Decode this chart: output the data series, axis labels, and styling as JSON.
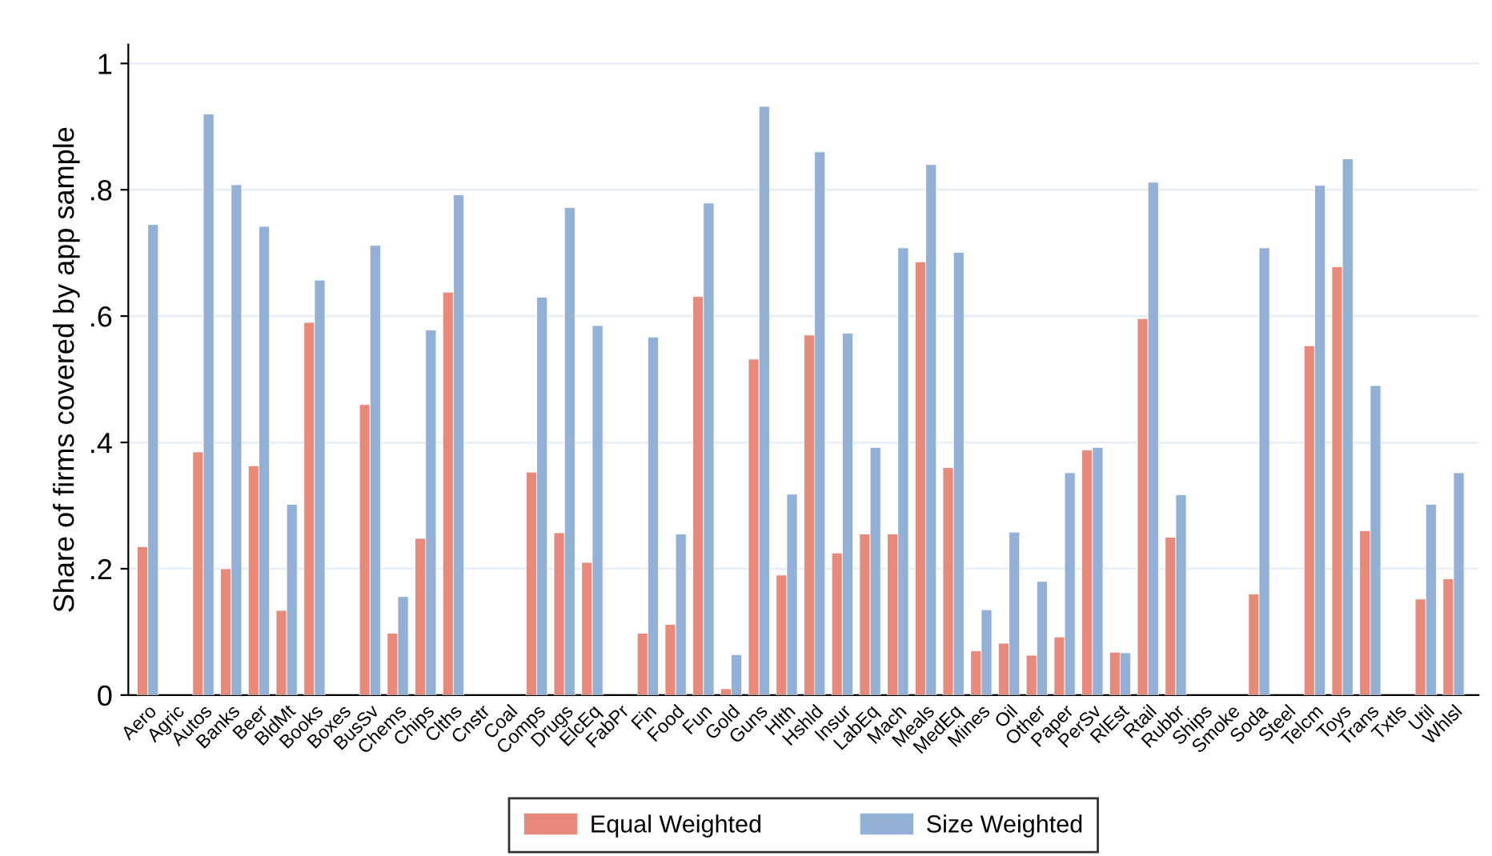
{
  "chart_data": {
    "type": "bar",
    "ylabel": "Share of firms covered by app sample",
    "categories": [
      "Aero",
      "Agric",
      "Autos",
      "Banks",
      "Beer",
      "BldMt",
      "Books",
      "Boxes",
      "BusSv",
      "Chems",
      "Chips",
      "Clths",
      "Cnstr",
      "Coal",
      "Comps",
      "Drugs",
      "ElcEq",
      "FabPr",
      "Fin",
      "Food",
      "Fun",
      "Gold",
      "Guns",
      "Hlth",
      "Hshld",
      "Insur",
      "LabEq",
      "Mach",
      "Meals",
      "MedEq",
      "Mines",
      "Oil",
      "Other",
      "Paper",
      "PerSv",
      "RlEst",
      "Rtail",
      "Rubbr",
      "Ships",
      "Smoke",
      "Soda",
      "Steel",
      "Telcm",
      "Toys",
      "Trans",
      "Txtls",
      "Util",
      "Whlsl"
    ],
    "series": [
      {
        "name": "Equal Weighted",
        "color": "#e8897a",
        "values": [
          0.235,
          null,
          0.385,
          0.2,
          0.363,
          0.134,
          0.59,
          null,
          0.46,
          0.098,
          0.248,
          0.638,
          null,
          null,
          0.353,
          0.257,
          0.21,
          null,
          0.098,
          0.112,
          0.631,
          0.01,
          0.532,
          0.19,
          0.57,
          0.225,
          0.255,
          0.255,
          0.686,
          0.36,
          0.07,
          0.082,
          0.063,
          0.092,
          0.388,
          0.068,
          0.596,
          0.25,
          null,
          null,
          0.16,
          null,
          0.553,
          0.678,
          0.26,
          null,
          0.152,
          0.184
        ]
      },
      {
        "name": "Size Weighted",
        "color": "#93b1d6",
        "values": [
          0.745,
          null,
          0.92,
          0.808,
          0.742,
          0.302,
          0.657,
          null,
          0.712,
          0.156,
          0.578,
          0.792,
          null,
          null,
          0.63,
          0.772,
          0.585,
          null,
          0.567,
          0.255,
          0.779,
          0.064,
          0.932,
          0.318,
          0.86,
          0.573,
          0.392,
          0.708,
          0.84,
          0.701,
          0.135,
          0.258,
          0.18,
          0.352,
          0.392,
          0.067,
          0.812,
          0.317,
          null,
          null,
          0.708,
          null,
          0.807,
          0.849,
          0.49,
          null,
          0.302,
          0.352
        ]
      }
    ],
    "ylim": [
      0,
      1.03
    ],
    "yticks": [
      0,
      {
        "value": 0.2,
        "label": ".2"
      },
      {
        "value": 0.4,
        "label": ".4"
      },
      {
        "value": 0.6,
        "label": ".6"
      },
      {
        "value": 0.8,
        "label": ".8"
      },
      1
    ],
    "grid": "y",
    "legend": "bottom"
  }
}
